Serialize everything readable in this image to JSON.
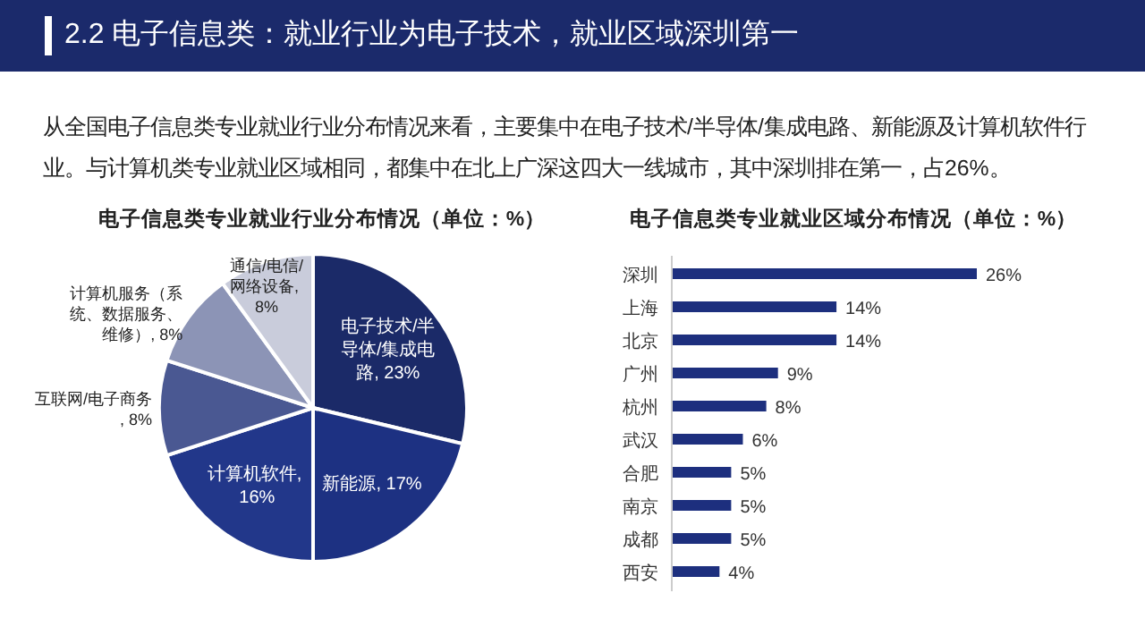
{
  "chart_data": [
    {
      "type": "other",
      "title": "2.2 电子信息类：就业行业为电子技术，就业区域深圳第一",
      "annotations": [
        "从全国电子信息类专业就业行业分布情况来看，主要集中在电子技术/半导体/集成电路、新能源及计算机软件行业。与计算机类专业就业区域相同，都集中在北上广深这四大一线城市，其中深圳排在第一，占26%。"
      ]
    },
    {
      "type": "pie",
      "title": "电子信息类专业就业行业分布情况（单位：%）",
      "categories": [
        "电子技术/半导体/集成电路",
        "新能源",
        "计算机软件",
        "互联网/电子商务",
        "计算机服务（系统、数据服务、维修）",
        "通信/电信/网络设备"
      ],
      "values": [
        23,
        17,
        16,
        8,
        8,
        8
      ],
      "value_labels": [
        ", 23%",
        ", 17%",
        ", 16%",
        ", 8%",
        ", 8%",
        ", 8%"
      ],
      "colors": [
        "#1b2a68",
        "#1d3182",
        "#22378a",
        "#4a5892",
        "#8c94b6",
        "#c9ccdb"
      ]
    },
    {
      "type": "bar",
      "orientation": "horizontal",
      "title": "电子信息类专业就业区域分布情况（单位：%）",
      "categories": [
        "深圳",
        "上海",
        "北京",
        "广州",
        "杭州",
        "武汉",
        "合肥",
        "南京",
        "成都",
        "西安"
      ],
      "values": [
        26,
        14,
        14,
        9,
        8,
        6,
        5,
        5,
        5,
        4
      ],
      "value_labels": [
        "26%",
        "14%",
        "14%",
        "9%",
        "8%",
        "6%",
        "5%",
        "5%",
        "5%",
        "4%"
      ],
      "color": "#1d2f7e"
    }
  ]
}
